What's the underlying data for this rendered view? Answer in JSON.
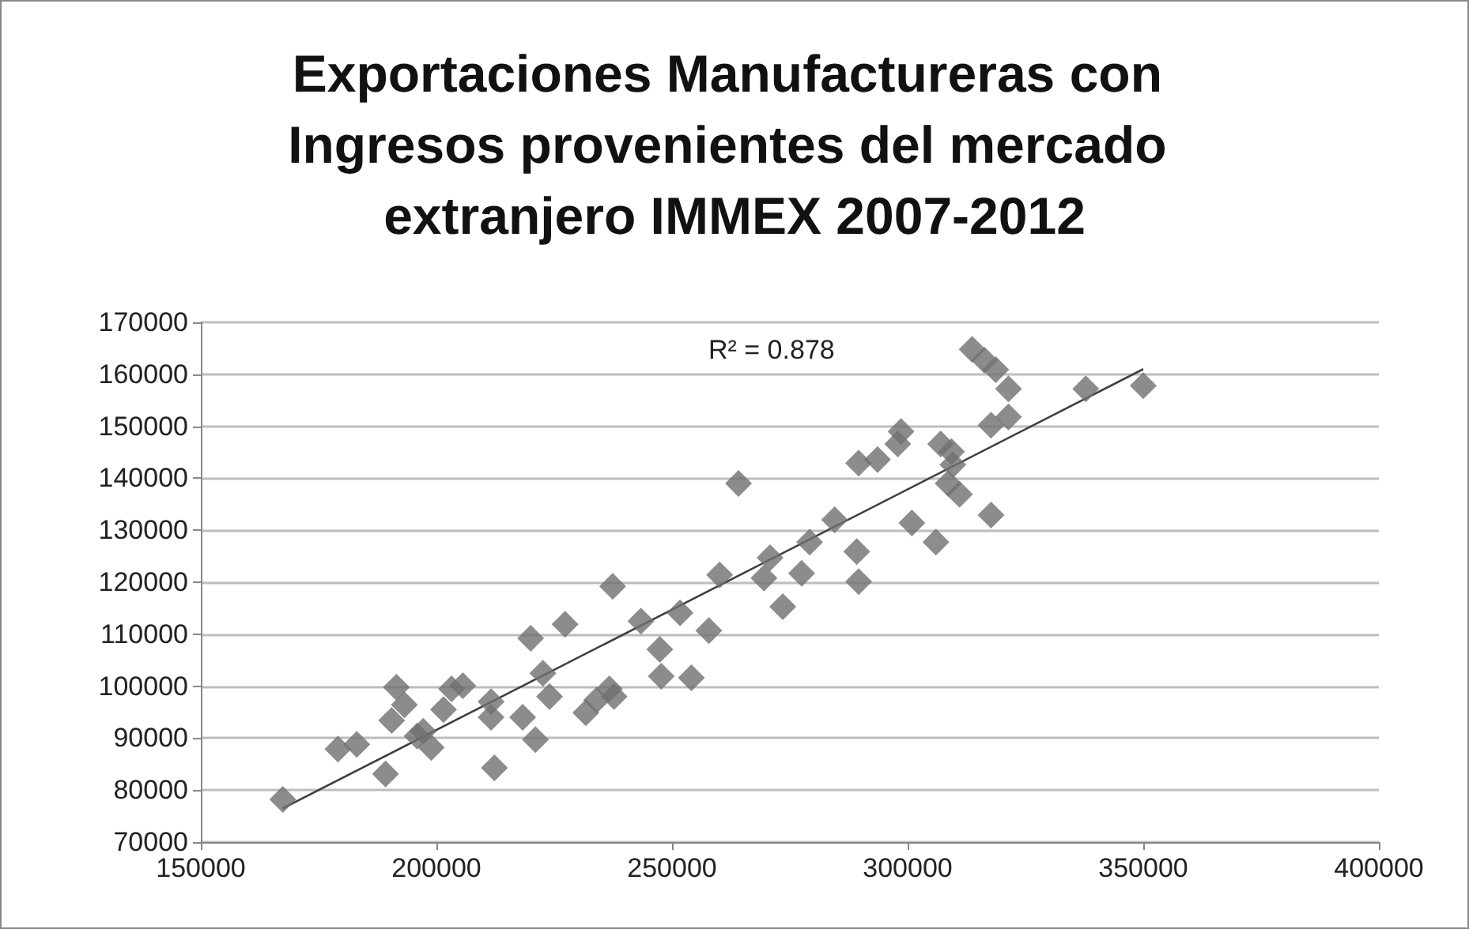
{
  "chart_data": {
    "type": "scatter",
    "title": "Exportaciones Manufactureras con Ingresos provenientes del mercado extranjero IMMEX 2007-2012",
    "annotations": [
      "R² = 0.878"
    ],
    "xlim": [
      150000,
      400000
    ],
    "xticks": [
      150000,
      200000,
      250000,
      300000,
      350000,
      400000
    ],
    "ylim": [
      70000,
      170000
    ],
    "yticks": [
      70000,
      80000,
      90000,
      100000,
      110000,
      120000,
      130000,
      140000,
      150000,
      160000,
      170000
    ],
    "grid": "y",
    "marker": "diamond",
    "series": [
      {
        "color": "#6f6f6f",
        "x": [
          167400,
          179100,
          183100,
          189200,
          191500,
          193200,
          190500,
          195900,
          198900,
          197200,
          201500,
          203200,
          205600,
          211600,
          211600,
          212300,
          220000,
          227300,
          222600,
          224000,
          218300,
          221000,
          231700,
          237400,
          243400,
          251700,
          257800,
          247400,
          247700,
          254100,
          234000,
          236700,
          237700,
          264100,
          260100,
          270800,
          269500,
          273500,
          277500,
          279200,
          284500,
          289200,
          289600,
          289600,
          293600,
          298600,
          297900,
          300900,
          306000,
          307000,
          308600,
          313700,
          316300,
          318700,
          321400,
          337800,
          350000,
          317700,
          321400,
          309300,
          309600,
          311000,
          317700
        ],
        "values": [
          78200,
          87900,
          88800,
          83100,
          99800,
          96400,
          93400,
          90400,
          88200,
          91300,
          95500,
          99500,
          100100,
          97000,
          94000,
          84300,
          109200,
          111900,
          102500,
          98000,
          94000,
          89700,
          94900,
          119200,
          112500,
          114100,
          110700,
          107100,
          101900,
          101600,
          97300,
          99500,
          98000,
          139000,
          121400,
          124700,
          120800,
          115300,
          121700,
          127700,
          132000,
          125900,
          120100,
          142900,
          143600,
          149000,
          146600,
          131400,
          127700,
          146600,
          139000,
          164800,
          162700,
          160900,
          157200,
          157200,
          157800,
          150200,
          151800,
          145100,
          142600,
          136900,
          132900
        ]
      },
      {
        "type": "line",
        "color": "#3f3f3f",
        "marker": "none",
        "x": [
          167400,
          350000
        ],
        "values": [
          76500,
          161000
        ]
      }
    ]
  }
}
